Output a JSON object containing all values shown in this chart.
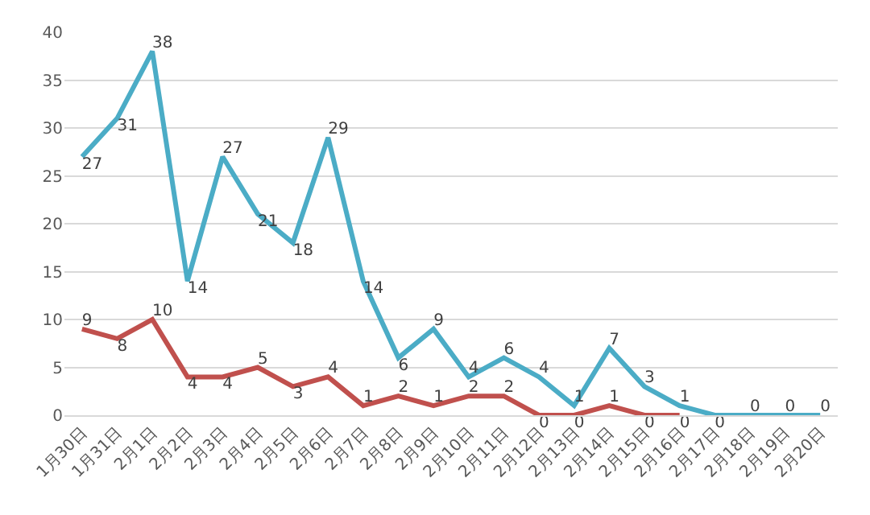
{
  "chart_data": {
    "type": "line",
    "categories": [
      "1月30日",
      "1月31日",
      "2月1日",
      "2月2日",
      "2月3日",
      "2月4日",
      "2月5日",
      "2月6日",
      "2月7日",
      "2月8日",
      "2月9日",
      "2月10日",
      "2月11日",
      "2月12日",
      "2月13日",
      "2月14日",
      "2月15日",
      "2月16日",
      "2月17日",
      "2月18日",
      "2月19日",
      "2月20日"
    ],
    "series": [
      {
        "color": "#4bacc6",
        "values": [
          27,
          31,
          38,
          14,
          27,
          21,
          18,
          29,
          14,
          6,
          9,
          4,
          6,
          4,
          1,
          7,
          3,
          1,
          0,
          0,
          0,
          0
        ]
      },
      {
        "color": "#c0504d",
        "values": [
          9,
          8,
          10,
          4,
          4,
          5,
          3,
          4,
          1,
          2,
          1,
          2,
          2,
          0,
          0,
          1,
          0,
          0,
          null,
          null,
          null,
          null
        ]
      }
    ],
    "ylim": [
      0,
      40
    ],
    "yticks": [
      0,
      5,
      10,
      15,
      20,
      25,
      30,
      35,
      40
    ],
    "grid": "y",
    "data_labels": true,
    "marker": "none",
    "line_style": "solid"
  }
}
